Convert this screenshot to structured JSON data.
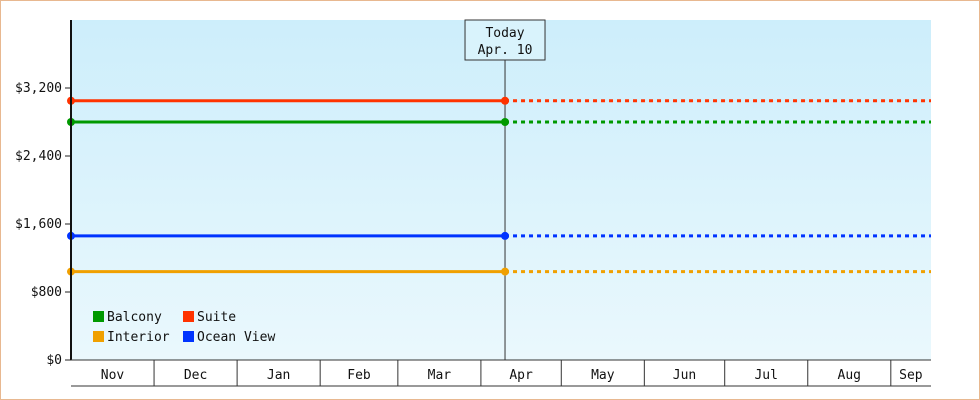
{
  "chart_data": {
    "type": "line",
    "title": "",
    "xlabel": "",
    "ylabel": "",
    "y_ticks": [
      "$0",
      "$800",
      "$1,600",
      "$2,400",
      "$3,200"
    ],
    "ylim": [
      0,
      4000
    ],
    "x_ticks": [
      "Nov",
      "Dec",
      "Jan",
      "Feb",
      "Mar",
      "Apr",
      "May",
      "Jun",
      "Jul",
      "Aug",
      "Sep"
    ],
    "x_range": [
      "2023-10-31",
      "2024-09-16"
    ],
    "today_marker": {
      "date": "2024-04-10",
      "title": "Today",
      "label": "Apr. 10"
    },
    "series": [
      {
        "name": "Suite",
        "color": "#ff3300",
        "start": "2023-10-31",
        "value": 3050,
        "projected_after": "2024-04-10"
      },
      {
        "name": "Balcony",
        "color": "#009900",
        "start": "2023-10-31",
        "value": 2800,
        "projected_after": "2024-04-10"
      },
      {
        "name": "Ocean View",
        "color": "#0033ff",
        "start": "2023-10-31",
        "value": 1460,
        "projected_after": "2024-04-10"
      },
      {
        "name": "Interior",
        "color": "#f0a000",
        "start": "2023-10-31",
        "value": 1040,
        "projected_after": "2024-04-10"
      }
    ],
    "legend": {
      "placement": "bottom-left",
      "order": [
        "Balcony",
        "Suite",
        "Interior",
        "Ocean View"
      ]
    },
    "background_gradient": [
      "#cdeefb",
      "#eaf8fd"
    ],
    "grid": false
  }
}
